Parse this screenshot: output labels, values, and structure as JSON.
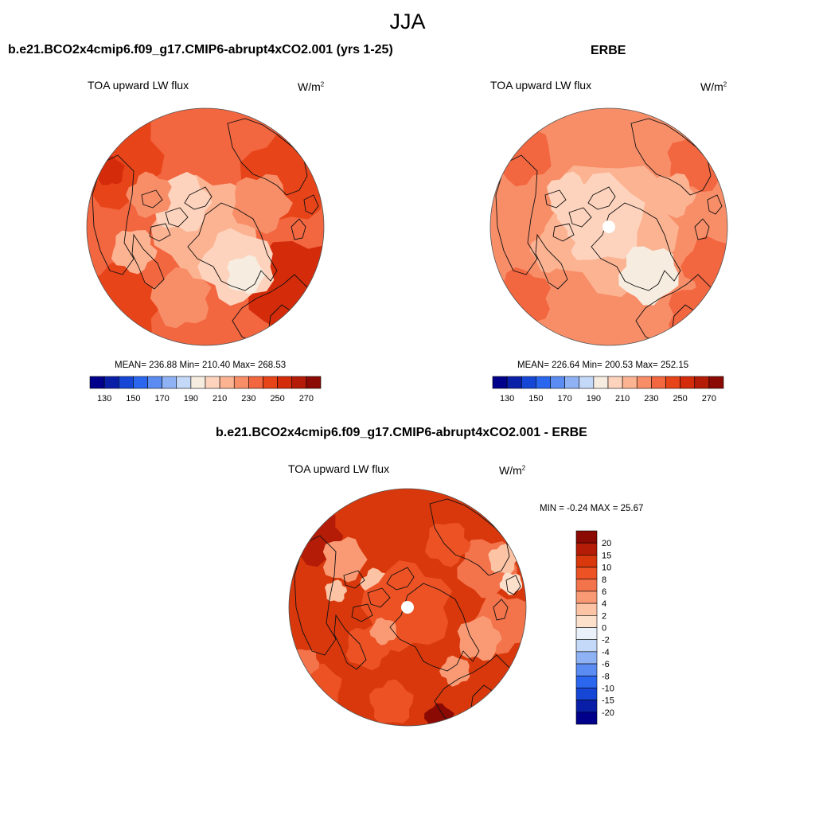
{
  "season": "JJA",
  "palette": {
    "seq": [
      "#00008b",
      "#0a1fa8",
      "#1646d6",
      "#2a66ee",
      "#5a8cf2",
      "#8fb2f4",
      "#c4d8f8",
      "#f6ecdf",
      "#fdd3bd",
      "#fcb392",
      "#f88e68",
      "#f26640",
      "#e84419",
      "#d42b0a",
      "#b51c07",
      "#8b0a03"
    ],
    "diff": [
      "#00008b",
      "#0a1fa8",
      "#1646d6",
      "#2a66ee",
      "#5a8cf2",
      "#8fb2f4",
      "#c4d8f8",
      "#eaf1fb",
      "#fde0cc",
      "#fcc3a4",
      "#f99a74",
      "#f3734b",
      "#ec5224",
      "#d9380c",
      "#b51c07",
      "#8b0a03"
    ],
    "coast": "#111111"
  },
  "panels": {
    "model": {
      "title": "b.e21.BCO2x4cmip6.f09_g17.CMIP6-abrupt4xCO2.001 (yrs 1-25)",
      "variable": "TOA upward LW flux",
      "units_base": "W/m",
      "units_exp": "2",
      "stats": "MEAN= 236.88  Min= 210.40  Max= 268.53",
      "mean": 236.88,
      "min": 210.4,
      "max": 268.53
    },
    "obs": {
      "title": "ERBE",
      "variable": "TOA upward LW flux",
      "units_base": "W/m",
      "units_exp": "2",
      "stats": "MEAN= 226.64  Min= 200.53  Max= 252.15",
      "mean": 226.64,
      "min": 200.53,
      "max": 252.15
    },
    "diff": {
      "title": "b.e21.BCO2x4cmip6.f09_g17.CMIP6-abrupt4xCO2.001 - ERBE",
      "variable": "TOA upward LW flux",
      "units_base": "W/m",
      "units_exp": "2",
      "stats": "MIN =  -0.24 MAX =  25.67",
      "min": -0.24,
      "max": 25.67
    }
  },
  "colorbar_seq_labels": [
    "130",
    "150",
    "170",
    "190",
    "210",
    "230",
    "250",
    "270"
  ],
  "colorbar_diff_labels": [
    "20",
    "15",
    "10",
    "8",
    "6",
    "4",
    "2",
    "0",
    "-2",
    "-4",
    "-6",
    "-8",
    "-10",
    "-15",
    "-20"
  ]
}
